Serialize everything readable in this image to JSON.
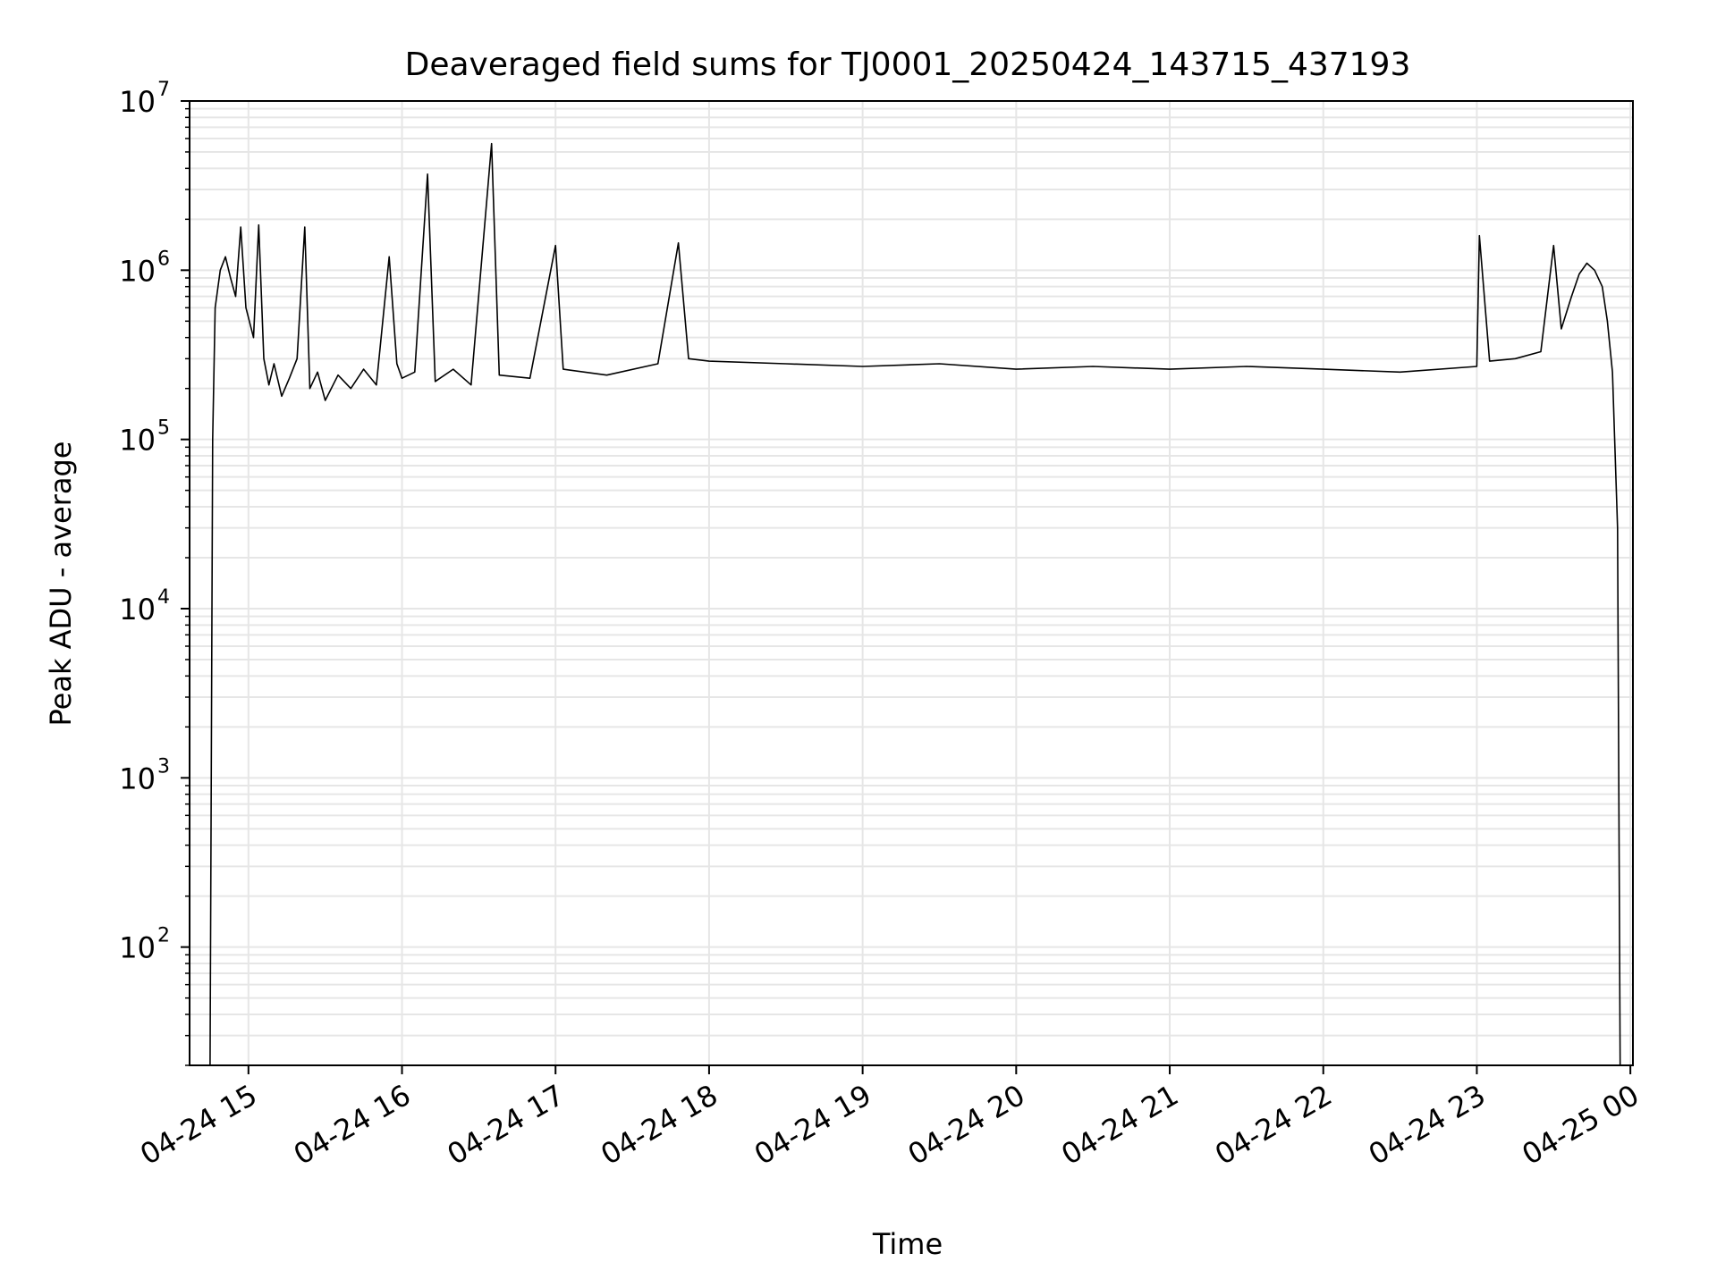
{
  "chart_data": {
    "type": "line",
    "title": "Deaveraged field sums for TJ0001_20250424_143715_437193",
    "xlabel": "Time",
    "ylabel": "Peak ADU - average",
    "yscale": "log",
    "ylim": [
      20,
      10000000
    ],
    "xlim": [
      "2025-04-24 14:37",
      "2025-04-25 00:01"
    ],
    "grid": true,
    "legend": "none",
    "line_color": "#000000",
    "x_ticks": [
      {
        "t": "2025-04-24 15:00",
        "label": "04-24 15"
      },
      {
        "t": "2025-04-24 16:00",
        "label": "04-24 16"
      },
      {
        "t": "2025-04-24 17:00",
        "label": "04-24 17"
      },
      {
        "t": "2025-04-24 18:00",
        "label": "04-24 18"
      },
      {
        "t": "2025-04-24 19:00",
        "label": "04-24 19"
      },
      {
        "t": "2025-04-24 20:00",
        "label": "04-24 20"
      },
      {
        "t": "2025-04-24 21:00",
        "label": "04-24 21"
      },
      {
        "t": "2025-04-24 22:00",
        "label": "04-24 22"
      },
      {
        "t": "2025-04-24 23:00",
        "label": "04-24 23"
      },
      {
        "t": "2025-04-25 00:00",
        "label": "04-25 00"
      }
    ],
    "y_ticks": [
      {
        "value": 100,
        "base": "10",
        "exp": "2"
      },
      {
        "value": 1000,
        "base": "10",
        "exp": "3"
      },
      {
        "value": 10000,
        "base": "10",
        "exp": "4"
      },
      {
        "value": 100000,
        "base": "10",
        "exp": "5"
      },
      {
        "value": 1000000,
        "base": "10",
        "exp": "6"
      },
      {
        "value": 10000000,
        "base": "10",
        "exp": "7"
      }
    ],
    "series": [
      {
        "points": [
          [
            "2025-04-24 14:45",
            20
          ],
          [
            "2025-04-24 14:46",
            100000
          ],
          [
            "2025-04-24 14:47",
            600000
          ],
          [
            "2025-04-24 14:49",
            1000000
          ],
          [
            "2025-04-24 14:51",
            1200000
          ],
          [
            "2025-04-24 14:53",
            900000
          ],
          [
            "2025-04-24 14:55",
            700000
          ],
          [
            "2025-04-24 14:57",
            1800000
          ],
          [
            "2025-04-24 14:59",
            600000
          ],
          [
            "2025-04-24 15:02",
            400000
          ],
          [
            "2025-04-24 15:04",
            1850000
          ],
          [
            "2025-04-24 15:06",
            300000
          ],
          [
            "2025-04-24 15:08",
            210000
          ],
          [
            "2025-04-24 15:10",
            280000
          ],
          [
            "2025-04-24 15:13",
            180000
          ],
          [
            "2025-04-24 15:16",
            230000
          ],
          [
            "2025-04-24 15:19",
            300000
          ],
          [
            "2025-04-24 15:22",
            1800000
          ],
          [
            "2025-04-24 15:24",
            200000
          ],
          [
            "2025-04-24 15:27",
            250000
          ],
          [
            "2025-04-24 15:30",
            170000
          ],
          [
            "2025-04-24 15:35",
            240000
          ],
          [
            "2025-04-24 15:40",
            200000
          ],
          [
            "2025-04-24 15:45",
            260000
          ],
          [
            "2025-04-24 15:50",
            210000
          ],
          [
            "2025-04-24 15:55",
            1200000
          ],
          [
            "2025-04-24 15:58",
            280000
          ],
          [
            "2025-04-24 16:00",
            230000
          ],
          [
            "2025-04-24 16:05",
            250000
          ],
          [
            "2025-04-24 16:10",
            3700000
          ],
          [
            "2025-04-24 16:13",
            220000
          ],
          [
            "2025-04-24 16:20",
            260000
          ],
          [
            "2025-04-24 16:27",
            210000
          ],
          [
            "2025-04-24 16:35",
            5600000
          ],
          [
            "2025-04-24 16:38",
            240000
          ],
          [
            "2025-04-24 16:50",
            230000
          ],
          [
            "2025-04-24 17:00",
            1400000
          ],
          [
            "2025-04-24 17:03",
            260000
          ],
          [
            "2025-04-24 17:20",
            240000
          ],
          [
            "2025-04-24 17:40",
            280000
          ],
          [
            "2025-04-24 17:48",
            1450000
          ],
          [
            "2025-04-24 17:52",
            300000
          ],
          [
            "2025-04-24 18:00",
            290000
          ],
          [
            "2025-04-24 18:30",
            280000
          ],
          [
            "2025-04-24 19:00",
            270000
          ],
          [
            "2025-04-24 19:30",
            280000
          ],
          [
            "2025-04-24 20:00",
            260000
          ],
          [
            "2025-04-24 20:30",
            270000
          ],
          [
            "2025-04-24 21:00",
            260000
          ],
          [
            "2025-04-24 21:30",
            270000
          ],
          [
            "2025-04-24 22:00",
            260000
          ],
          [
            "2025-04-24 22:30",
            250000
          ],
          [
            "2025-04-24 23:00",
            270000
          ],
          [
            "2025-04-24 23:01",
            1600000
          ],
          [
            "2025-04-24 23:05",
            290000
          ],
          [
            "2025-04-24 23:15",
            300000
          ],
          [
            "2025-04-24 23:25",
            330000
          ],
          [
            "2025-04-24 23:30",
            1400000
          ],
          [
            "2025-04-24 23:33",
            450000
          ],
          [
            "2025-04-24 23:37",
            700000
          ],
          [
            "2025-04-24 23:40",
            950000
          ],
          [
            "2025-04-24 23:43",
            1100000
          ],
          [
            "2025-04-24 23:46",
            1000000
          ],
          [
            "2025-04-24 23:49",
            800000
          ],
          [
            "2025-04-24 23:51",
            500000
          ],
          [
            "2025-04-24 23:53",
            250000
          ],
          [
            "2025-04-24 23:55",
            30000
          ],
          [
            "2025-04-24 23:56",
            20
          ]
        ]
      }
    ]
  }
}
